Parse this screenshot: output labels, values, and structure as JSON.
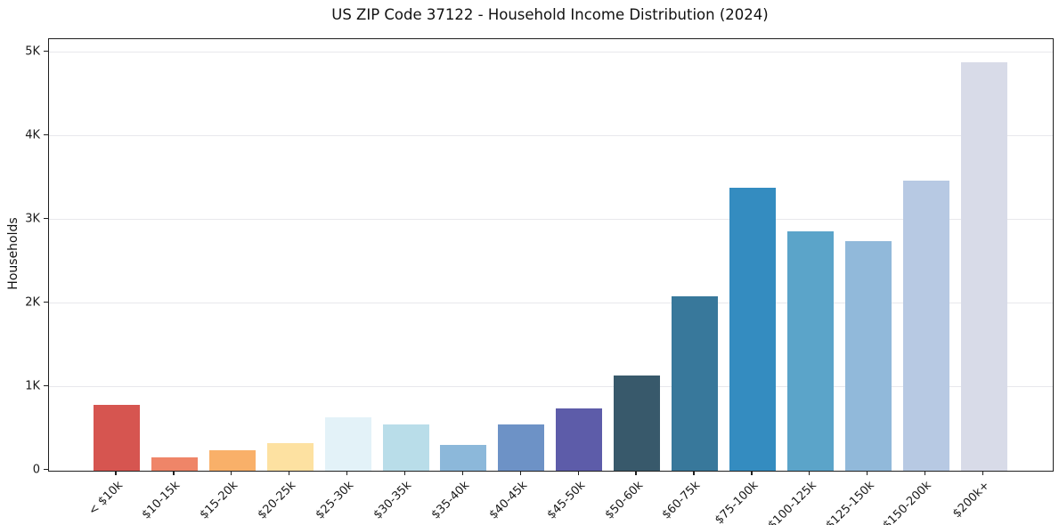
{
  "chart_data": {
    "type": "bar",
    "title": "US ZIP Code 37122 - Household Income Distribution (2024)",
    "ylabel": "Households",
    "xlabel": "",
    "categories": [
      "< $10k",
      "$10-15k",
      "$15-20k",
      "$20-25k",
      "$25-30k",
      "$30-35k",
      "$35-40k",
      "$40-45k",
      "$45-50k",
      "$50-60k",
      "$60-75k",
      "$75-100k",
      "$100-125k",
      "$125-150k",
      "$150-200k",
      "$200k+"
    ],
    "values": [
      780,
      155,
      235,
      330,
      635,
      545,
      300,
      550,
      735,
      1130,
      2075,
      3375,
      2855,
      2740,
      3460,
      4880
    ],
    "bar_colors": [
      "#d65550",
      "#ef8568",
      "#f9b069",
      "#fde1a1",
      "#e3f2f8",
      "#b9dde9",
      "#8cb8da",
      "#6d92c6",
      "#5d5ca9",
      "#38596b",
      "#38789b",
      "#348cc0",
      "#5ba4c9",
      "#91b9da",
      "#b7c9e3",
      "#d8dbe8"
    ],
    "yticks": [
      {
        "value": 0,
        "label": "0"
      },
      {
        "value": 1000,
        "label": "1K"
      },
      {
        "value": 2000,
        "label": "2K"
      },
      {
        "value": 3000,
        "label": "3K"
      },
      {
        "value": 4000,
        "label": "4K"
      },
      {
        "value": 5000,
        "label": "5K"
      }
    ],
    "ylim": [
      0,
      5155
    ],
    "grid": "horizontal",
    "legend_position": "none"
  },
  "style": {
    "background": "#ffffff",
    "spine_color": "#1f1f1f",
    "grid_color": "#e8e8ec",
    "text_color": "#1a1a1a"
  }
}
